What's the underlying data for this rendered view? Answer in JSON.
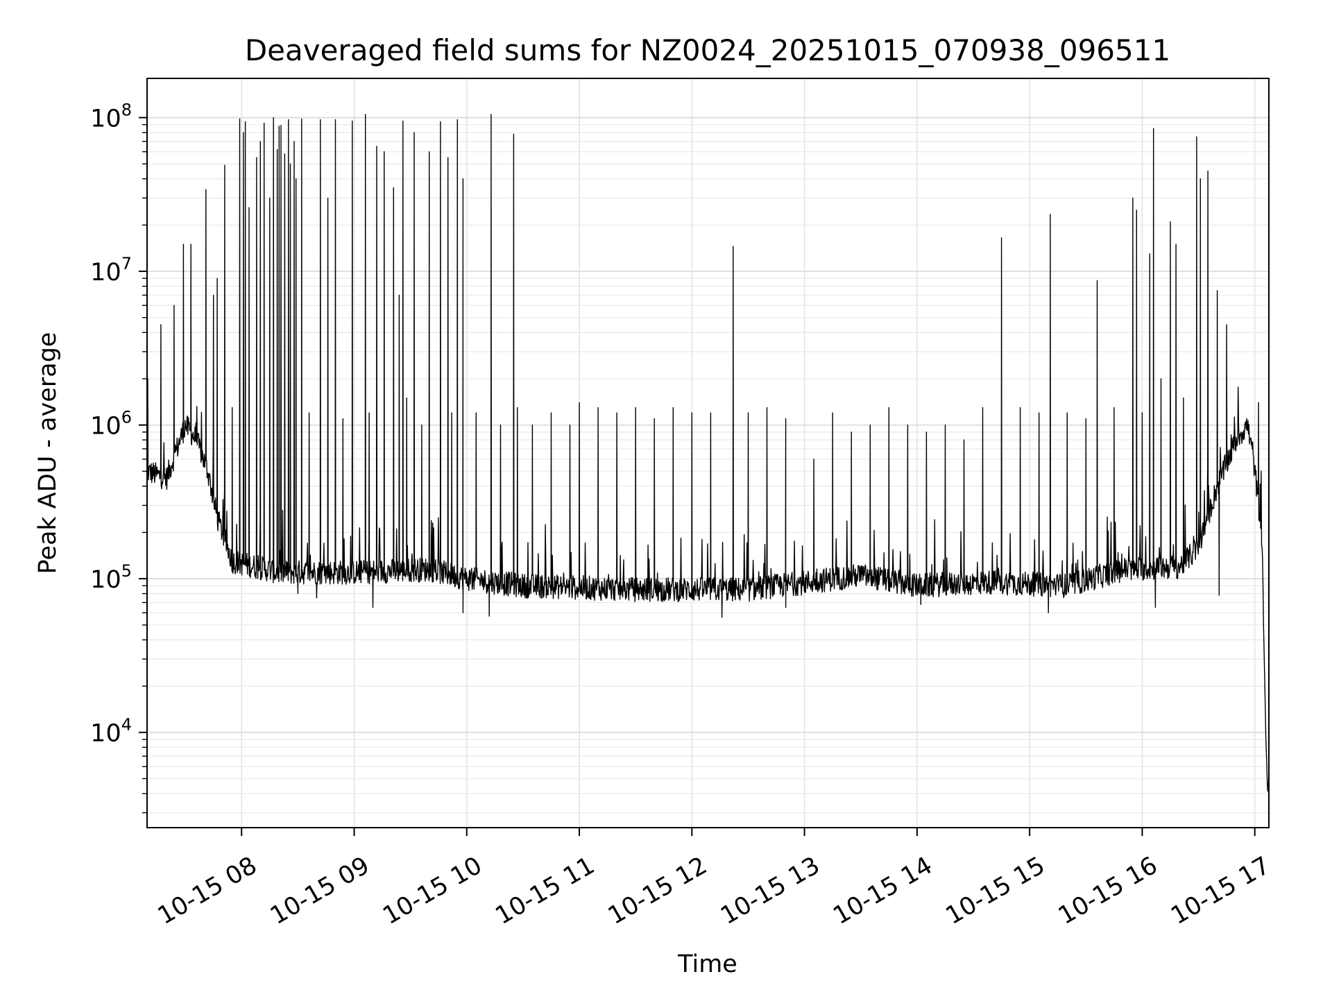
{
  "chart_data": {
    "type": "line",
    "title": "Deaveraged field sums for NZ0024_20251015_070938_096511",
    "xlabel": "Time",
    "ylabel": "Peak ADU - average",
    "yscale": "log",
    "ylim": [
      2400,
      180000000
    ],
    "xlim": [
      "2025-10-15 07:09:38",
      "2025-10-15 17:07:30"
    ],
    "grid": true,
    "line_color": "#000000",
    "x_ticks": [
      {
        "t": "2025-10-15 08:00",
        "label": "10-15 08"
      },
      {
        "t": "2025-10-15 09:00",
        "label": "10-15 09"
      },
      {
        "t": "2025-10-15 10:00",
        "label": "10-15 10"
      },
      {
        "t": "2025-10-15 11:00",
        "label": "10-15 11"
      },
      {
        "t": "2025-10-15 12:00",
        "label": "10-15 12"
      },
      {
        "t": "2025-10-15 13:00",
        "label": "10-15 13"
      },
      {
        "t": "2025-10-15 14:00",
        "label": "10-15 14"
      },
      {
        "t": "2025-10-15 15:00",
        "label": "10-15 15"
      },
      {
        "t": "2025-10-15 16:00",
        "label": "10-15 16"
      },
      {
        "t": "2025-10-15 17:00",
        "label": "10-15 17"
      }
    ],
    "y_ticks": [
      {
        "value": 10000,
        "base": "10",
        "exp": "4"
      },
      {
        "value": 100000,
        "base": "10",
        "exp": "5"
      },
      {
        "value": 1000000,
        "base": "10",
        "exp": "6"
      },
      {
        "value": 10000000,
        "base": "10",
        "exp": "7"
      },
      {
        "value": 100000000,
        "base": "10",
        "exp": "8"
      }
    ],
    "baseline": [
      [
        "2025-10-15 07:09:38",
        500000
      ],
      [
        "2025-10-15 07:20",
        450000
      ],
      [
        "2025-10-15 07:30",
        1000000
      ],
      [
        "2025-10-15 07:36",
        800000
      ],
      [
        "2025-10-15 07:42",
        500000
      ],
      [
        "2025-10-15 07:47",
        250000
      ],
      [
        "2025-10-15 07:55",
        130000
      ],
      [
        "2025-10-15 08:20",
        110000
      ],
      [
        "2025-10-15 09:00",
        110000
      ],
      [
        "2025-10-15 09:40",
        115000
      ],
      [
        "2025-10-15 10:00",
        100000
      ],
      [
        "2025-10-15 10:30",
        90000
      ],
      [
        "2025-10-15 11:30",
        85000
      ],
      [
        "2025-10-15 12:30",
        85000
      ],
      [
        "2025-10-15 13:30",
        105000
      ],
      [
        "2025-10-15 14:00",
        90000
      ],
      [
        "2025-10-15 14:40",
        95000
      ],
      [
        "2025-10-15 15:20",
        90000
      ],
      [
        "2025-10-15 15:50",
        115000
      ],
      [
        "2025-10-15 16:20",
        120000
      ],
      [
        "2025-10-15 16:30",
        160000
      ],
      [
        "2025-10-15 16:40",
        400000
      ],
      [
        "2025-10-15 16:50",
        800000
      ],
      [
        "2025-10-15 16:56",
        1000000
      ],
      [
        "2025-10-15 16:59",
        650000
      ],
      [
        "2025-10-15 17:02",
        300000
      ],
      [
        "2025-10-15 17:04",
        160000
      ],
      [
        "2025-10-15 17:05",
        30000
      ],
      [
        "2025-10-15 17:06",
        8000
      ],
      [
        "2025-10-15 17:07",
        3800
      ],
      [
        "2025-10-15 17:07:30",
        6000
      ]
    ],
    "spikes": [
      [
        "2025-10-15 07:10",
        2000000
      ],
      [
        "2025-10-15 07:17",
        4500000
      ],
      [
        "2025-10-15 07:24",
        6000000
      ],
      [
        "2025-10-15 07:29",
        15000000
      ],
      [
        "2025-10-15 07:33",
        15000000
      ],
      [
        "2025-10-15 07:41",
        34000000
      ],
      [
        "2025-10-15 07:45",
        7000000
      ],
      [
        "2025-10-15 07:47",
        9000000
      ],
      [
        "2025-10-15 07:51",
        49000000
      ],
      [
        "2025-10-15 07:55",
        1300000
      ],
      [
        "2025-10-15 07:59",
        98000000
      ],
      [
        "2025-10-15 08:01",
        80000000
      ],
      [
        "2025-10-15 08:02",
        94000000
      ],
      [
        "2025-10-15 08:04",
        26000000
      ],
      [
        "2025-10-15 08:08",
        55000000
      ],
      [
        "2025-10-15 08:10",
        70000000
      ],
      [
        "2025-10-15 08:12",
        92000000
      ],
      [
        "2025-10-15 08:15",
        30000000
      ],
      [
        "2025-10-15 08:17",
        100000000
      ],
      [
        "2025-10-15 08:19",
        62000000
      ],
      [
        "2025-10-15 08:20",
        88000000
      ],
      [
        "2025-10-15 08:21",
        89000000
      ],
      [
        "2025-10-15 08:23",
        58000000
      ],
      [
        "2025-10-15 08:25",
        97000000
      ],
      [
        "2025-10-15 08:26",
        50000000
      ],
      [
        "2025-10-15 08:28",
        70000000
      ],
      [
        "2025-10-15 08:29",
        40000000
      ],
      [
        "2025-10-15 08:32",
        98000000
      ],
      [
        "2025-10-15 08:36",
        1200000
      ],
      [
        "2025-10-15 08:42",
        97000000
      ],
      [
        "2025-10-15 08:46",
        30000000
      ],
      [
        "2025-10-15 08:50",
        97000000
      ],
      [
        "2025-10-15 08:54",
        1100000
      ],
      [
        "2025-10-15 08:59",
        95000000
      ],
      [
        "2025-10-15 09:06",
        105000000
      ],
      [
        "2025-10-15 09:08",
        1200000
      ],
      [
        "2025-10-15 09:12",
        65000000
      ],
      [
        "2025-10-15 09:16",
        60000000
      ],
      [
        "2025-10-15 09:21",
        35000000
      ],
      [
        "2025-10-15 09:24",
        7000000
      ],
      [
        "2025-10-15 09:26",
        95000000
      ],
      [
        "2025-10-15 09:28",
        1500000
      ],
      [
        "2025-10-15 09:32",
        80000000
      ],
      [
        "2025-10-15 09:36",
        1000000
      ],
      [
        "2025-10-15 09:40",
        60000000
      ],
      [
        "2025-10-15 09:46",
        94000000
      ],
      [
        "2025-10-15 09:50",
        55000000
      ],
      [
        "2025-10-15 09:52",
        1200000
      ],
      [
        "2025-10-15 09:55",
        97000000
      ],
      [
        "2025-10-15 09:58",
        40000000
      ],
      [
        "2025-10-15 10:05",
        1200000
      ],
      [
        "2025-10-15 10:13",
        105000000
      ],
      [
        "2025-10-15 10:18",
        1000000
      ],
      [
        "2025-10-15 10:25",
        78000000
      ],
      [
        "2025-10-15 10:27",
        1300000
      ],
      [
        "2025-10-15 10:35",
        1000000
      ],
      [
        "2025-10-15 10:45",
        1200000
      ],
      [
        "2025-10-15 10:55",
        1000000
      ],
      [
        "2025-10-15 11:00",
        1400000
      ],
      [
        "2025-10-15 11:10",
        1300000
      ],
      [
        "2025-10-15 11:20",
        1200000
      ],
      [
        "2025-10-15 11:30",
        1300000
      ],
      [
        "2025-10-15 11:40",
        1100000
      ],
      [
        "2025-10-15 11:50",
        1300000
      ],
      [
        "2025-10-15 12:00",
        1200000
      ],
      [
        "2025-10-15 12:10",
        1200000
      ],
      [
        "2025-10-15 12:22",
        14500000
      ],
      [
        "2025-10-15 12:30",
        1200000
      ],
      [
        "2025-10-15 12:40",
        1300000
      ],
      [
        "2025-10-15 12:50",
        1100000
      ],
      [
        "2025-10-15 13:05",
        600000
      ],
      [
        "2025-10-15 13:15",
        1200000
      ],
      [
        "2025-10-15 13:25",
        900000
      ],
      [
        "2025-10-15 13:35",
        1000000
      ],
      [
        "2025-10-15 13:45",
        1300000
      ],
      [
        "2025-10-15 13:55",
        1000000
      ],
      [
        "2025-10-15 14:05",
        900000
      ],
      [
        "2025-10-15 14:15",
        1000000
      ],
      [
        "2025-10-15 14:25",
        800000
      ],
      [
        "2025-10-15 14:35",
        1300000
      ],
      [
        "2025-10-15 14:45",
        16500000
      ],
      [
        "2025-10-15 14:55",
        1300000
      ],
      [
        "2025-10-15 15:05",
        1200000
      ],
      [
        "2025-10-15 15:11",
        23500000
      ],
      [
        "2025-10-15 15:20",
        1200000
      ],
      [
        "2025-10-15 15:30",
        1100000
      ],
      [
        "2025-10-15 15:36",
        8700000
      ],
      [
        "2025-10-15 15:45",
        1300000
      ],
      [
        "2025-10-15 15:55",
        30000000
      ],
      [
        "2025-10-15 15:57",
        25000000
      ],
      [
        "2025-10-15 16:00",
        1200000
      ],
      [
        "2025-10-15 16:04",
        13000000
      ],
      [
        "2025-10-15 16:06",
        85000000
      ],
      [
        "2025-10-15 16:10",
        2000000
      ],
      [
        "2025-10-15 16:15",
        21000000
      ],
      [
        "2025-10-15 16:18",
        15000000
      ],
      [
        "2025-10-15 16:22",
        1500000
      ],
      [
        "2025-10-15 16:29",
        75000000
      ],
      [
        "2025-10-15 16:31",
        40000000
      ],
      [
        "2025-10-15 16:35",
        45000000
      ],
      [
        "2025-10-15 16:40",
        7500000
      ],
      [
        "2025-10-15 16:45",
        4500000
      ],
      [
        "2025-10-15 17:02",
        1400000
      ]
    ],
    "dips": [
      [
        "2025-10-15 08:30",
        80000
      ],
      [
        "2025-10-15 08:40",
        75000
      ],
      [
        "2025-10-15 09:10",
        65000
      ],
      [
        "2025-10-15 09:58",
        60000
      ],
      [
        "2025-10-15 10:12",
        57000
      ],
      [
        "2025-10-15 12:16",
        56000
      ],
      [
        "2025-10-15 12:50",
        65000
      ],
      [
        "2025-10-15 14:02",
        68000
      ],
      [
        "2025-10-15 15:10",
        60000
      ],
      [
        "2025-10-15 16:07",
        65000
      ],
      [
        "2025-10-15 16:41",
        78000
      ]
    ]
  }
}
